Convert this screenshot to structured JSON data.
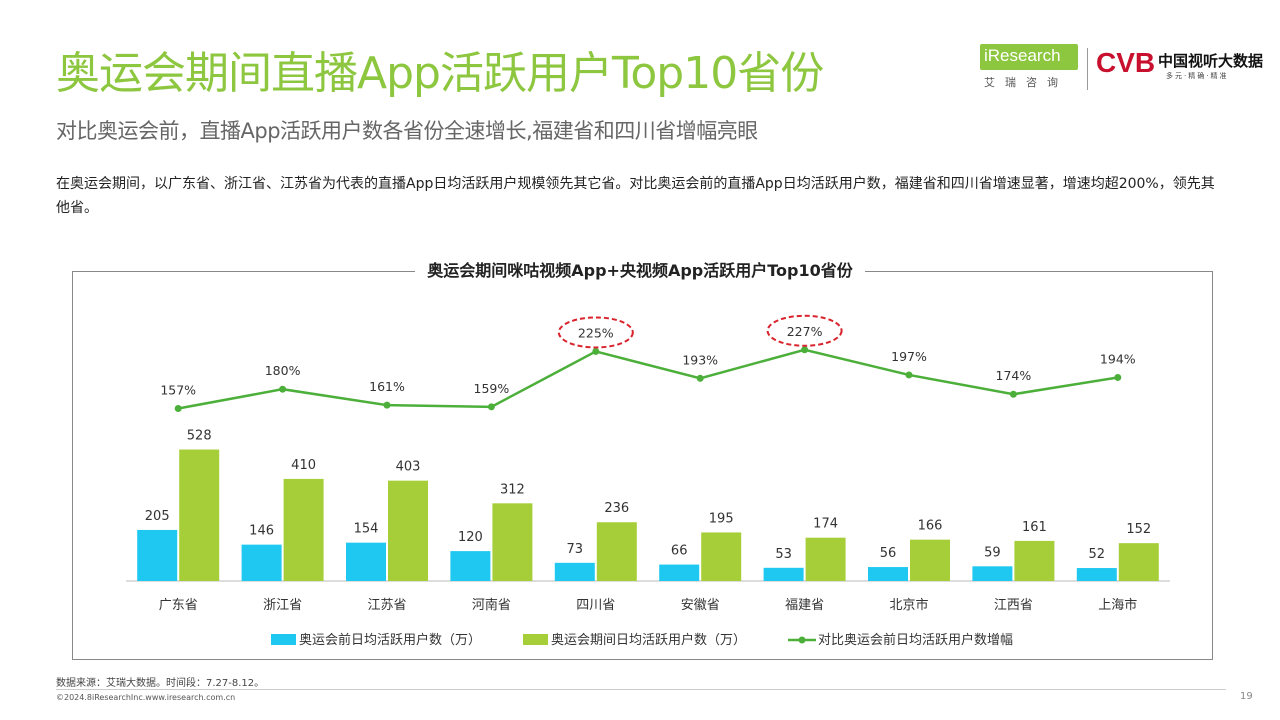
{
  "header": {
    "title": "奥运会期间直播App活跃用户Top10省份",
    "subtitle": "对比奥运会前，直播App活跃用户数各省份全速增长,福建省和四川省增幅亮眼",
    "body": "在奥运会期间，以广东省、浙江省、江苏省为代表的直播App日均活跃用户规模领先其它省。对比奥运会前的直播App日均活跃用户数，福建省和四川省增速显著，增速均超200%，领先其他省。"
  },
  "logos": {
    "iresearch": "iResearch",
    "iresearch_sub": "艾瑞咨询",
    "cvb": "CVB",
    "cvb_name": "中国视听大数据",
    "cvb_tag": "多元·精确·精准"
  },
  "colors": {
    "before": "#1ec8f0",
    "during": "#a6ce39",
    "line": "#4caf3a",
    "highlight": "#d9232d",
    "title": "#8dc63f"
  },
  "chart_data": {
    "type": "bar",
    "title": "奥运会期间咪咕视频App+央视频App活跃用户Top10省份",
    "categories": [
      "广东省",
      "浙江省",
      "江苏省",
      "河南省",
      "四川省",
      "安徽省",
      "福建省",
      "北京市",
      "江西省",
      "上海市"
    ],
    "series": [
      {
        "name": "奥运会前日均活跃用户数（万）",
        "type": "bar",
        "values": [
          205,
          146,
          154,
          120,
          73,
          66,
          53,
          56,
          59,
          52
        ]
      },
      {
        "name": "奥运会期间日均活跃用户数（万）",
        "type": "bar",
        "values": [
          528,
          410,
          403,
          312,
          236,
          195,
          174,
          166,
          161,
          152
        ]
      },
      {
        "name": "对比奥运会前日均活跃用户数增幅",
        "type": "line",
        "values": [
          157,
          180,
          161,
          159,
          225,
          193,
          227,
          197,
          174,
          194
        ],
        "labels": [
          "157%",
          "180%",
          "161%",
          "159%",
          "225%",
          "193%",
          "227%",
          "197%",
          "174%",
          "194%"
        ]
      }
    ],
    "highlighted": [
      "四川省",
      "福建省"
    ],
    "legend": "bottom"
  },
  "footer": {
    "source": "数据来源：艾瑞大数据。时间段：7.27-8.12。",
    "copyright": "©2024.8iResearchInc.www.iresearch.com.cn",
    "page": "19"
  }
}
